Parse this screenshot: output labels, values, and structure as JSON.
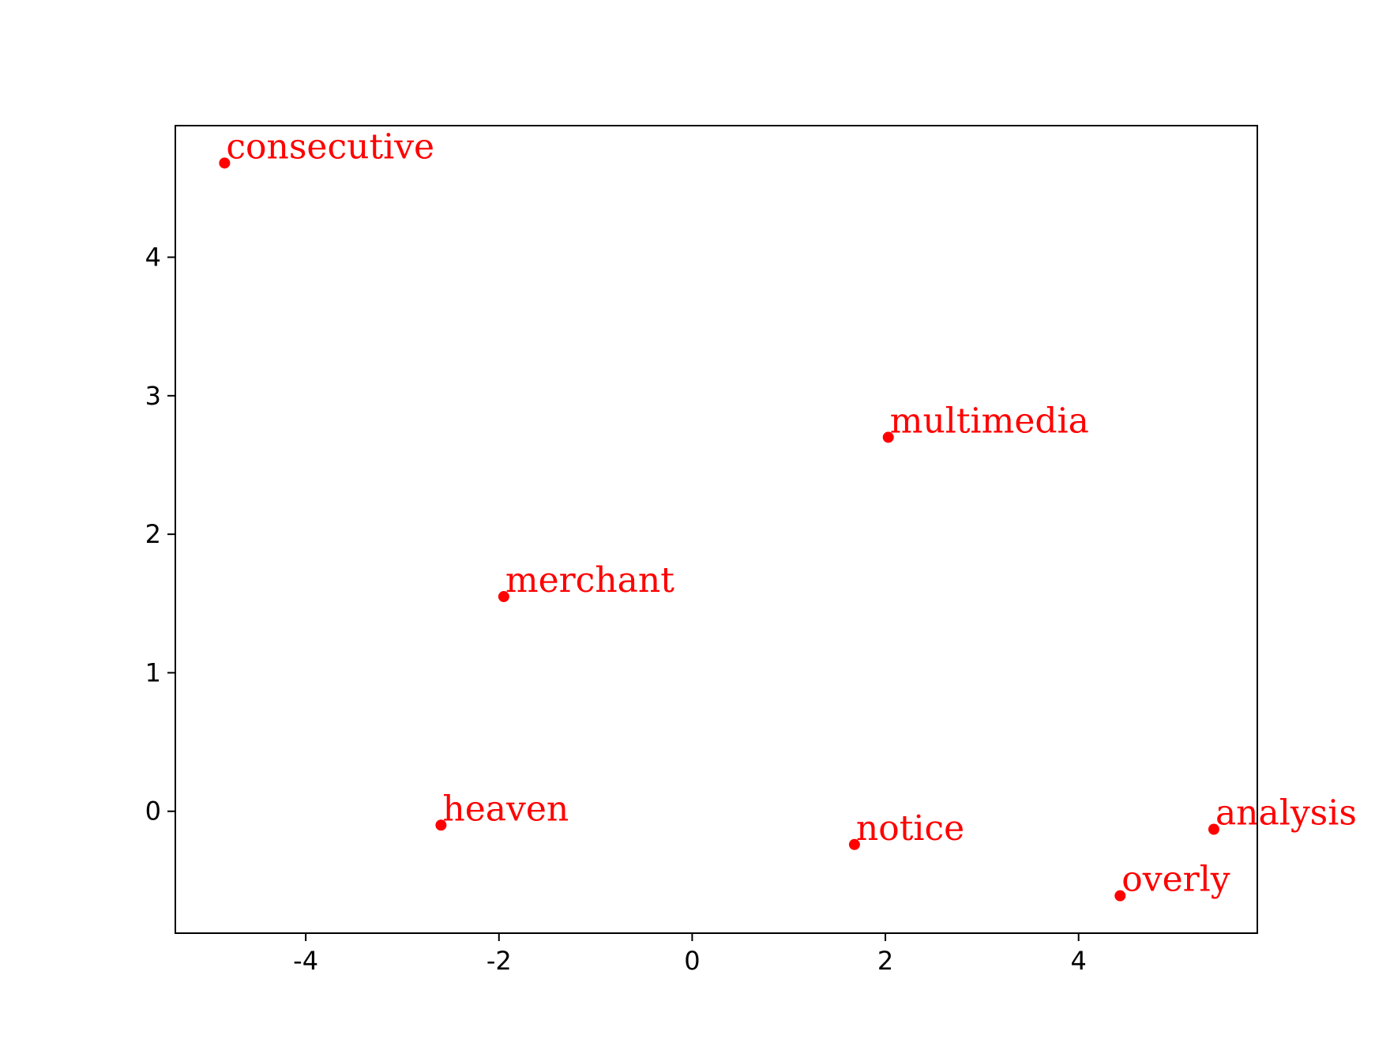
{
  "chart_data": {
    "type": "scatter",
    "title": "",
    "xlabel": "",
    "ylabel": "",
    "xlim": [
      -5.35,
      5.85
    ],
    "ylim": [
      -0.88,
      4.95
    ],
    "xticks": [
      -4,
      -2,
      0,
      2,
      4
    ],
    "yticks": [
      0,
      1,
      2,
      3,
      4
    ],
    "grid": false,
    "point_color": "#ff0000",
    "label_color": "#ff0000",
    "axis_color": "#000000",
    "points": [
      {
        "label": "consecutive",
        "x": -4.84,
        "y": 4.68
      },
      {
        "label": "multimedia",
        "x": 2.03,
        "y": 2.7
      },
      {
        "label": "merchant",
        "x": -1.95,
        "y": 1.55
      },
      {
        "label": "heaven",
        "x": -2.6,
        "y": -0.1
      },
      {
        "label": "notice",
        "x": 1.68,
        "y": -0.24
      },
      {
        "label": "analysis",
        "x": 5.4,
        "y": -0.13
      },
      {
        "label": "overly",
        "x": 4.43,
        "y": -0.61
      }
    ]
  }
}
